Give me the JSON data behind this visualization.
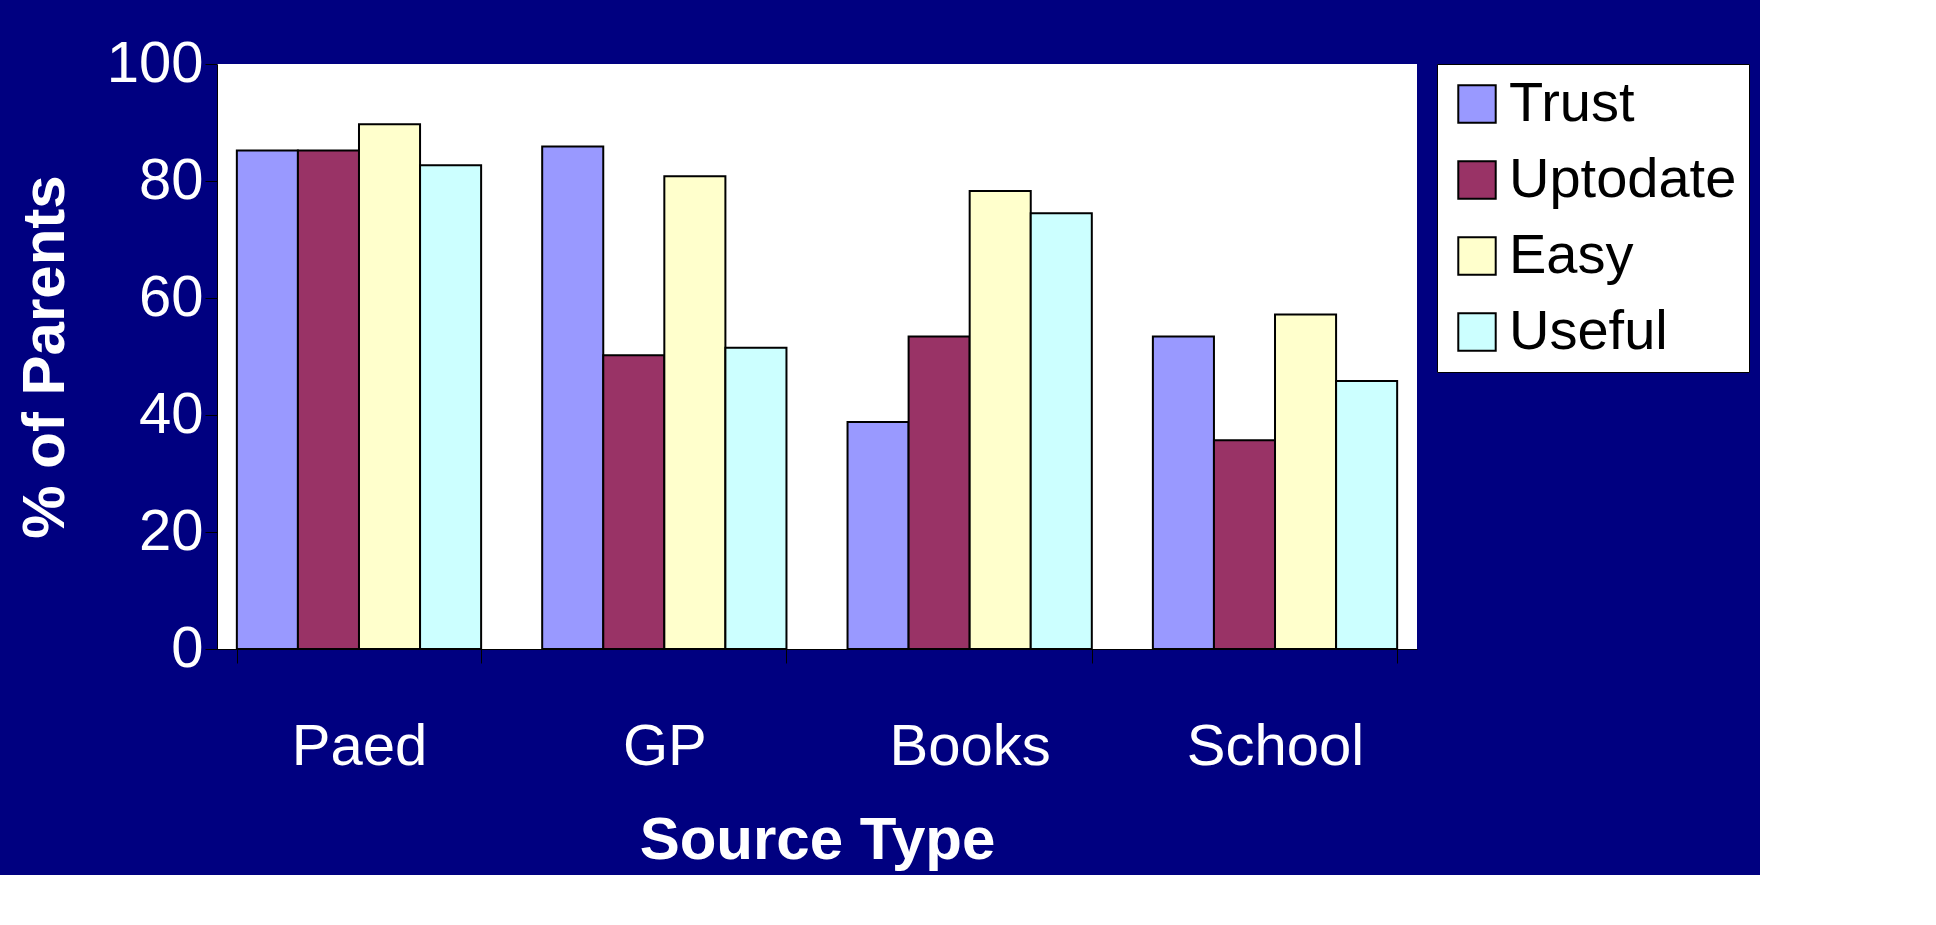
{
  "chart_data": {
    "type": "bar",
    "xlabel": "Source Type",
    "ylabel": "% of Parents",
    "categories": [
      "Paed",
      "GP",
      "Books",
      "School"
    ],
    "series": [
      {
        "name": "Trust",
        "color": "#9999ff",
        "values": [
          85.2,
          85.9,
          38.8,
          53.4
        ]
      },
      {
        "name": "Uptodate",
        "color": "#993366",
        "values": [
          85.2,
          50.2,
          53.4,
          35.7
        ]
      },
      {
        "name": "Easy",
        "color": "#ffffcc",
        "values": [
          89.7,
          80.8,
          78.3,
          57.2
        ]
      },
      {
        "name": "Useful",
        "color": "#ccffff",
        "values": [
          82.7,
          51.5,
          74.5,
          45.8
        ]
      }
    ],
    "ylim": [
      0,
      100
    ],
    "yticks": [
      0,
      20,
      40,
      60,
      80,
      100
    ],
    "grid": false,
    "legend": "right"
  }
}
